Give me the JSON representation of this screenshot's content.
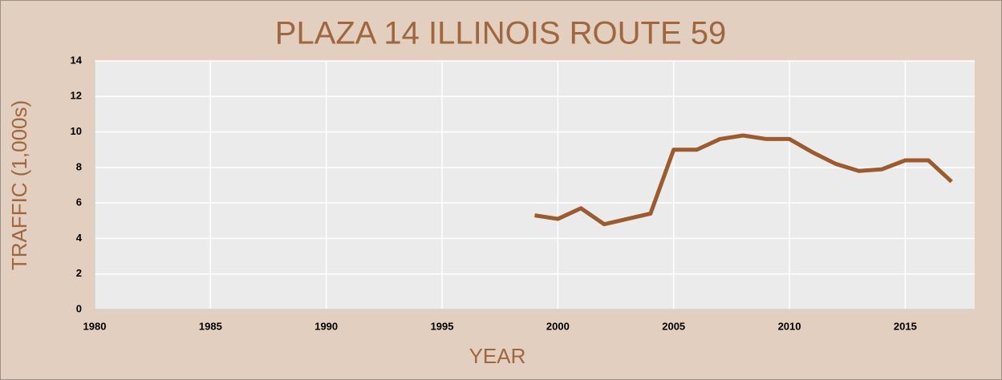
{
  "chart_data": {
    "type": "line",
    "title": "PLAZA 14 ILLINOIS ROUTE 59",
    "x_label": "YEAR",
    "y_label": "TRAFFIC (1,000s)",
    "x": [
      1999,
      2000,
      2001,
      2002,
      2003,
      2004,
      2005,
      2006,
      2007,
      2008,
      2009,
      2010,
      2011,
      2012,
      2013,
      2014,
      2015,
      2016,
      2017
    ],
    "series": [
      {
        "name": "Traffic",
        "color": "#9c5a2e",
        "values": [
          5.3,
          5.1,
          5.7,
          4.8,
          5.1,
          5.4,
          9.0,
          9.0,
          9.6,
          9.8,
          9.6,
          9.6,
          8.85,
          8.2,
          7.8,
          7.9,
          8.4,
          8.4,
          7.2
        ]
      }
    ],
    "xlim": [
      1980,
      2018
    ],
    "xticks": [
      1980,
      1985,
      1990,
      1995,
      2000,
      2005,
      2010,
      2015
    ],
    "ylim": [
      0,
      14
    ],
    "yticks": [
      0,
      2,
      4,
      6,
      8,
      10,
      12,
      14
    ],
    "grid": true
  }
}
